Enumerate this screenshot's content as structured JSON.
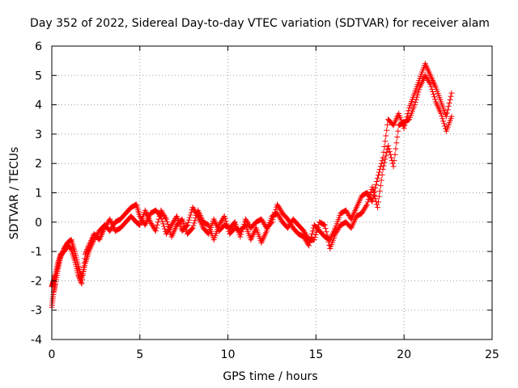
{
  "chart_data": {
    "type": "scatter",
    "title": "Day 352 of 2022, Sidereal Day-to-day VTEC variation (SDTVAR) for receiver alam",
    "xlabel": "GPS time / hours",
    "ylabel": "SDTVAR / TECUs",
    "xlim": [
      0,
      25
    ],
    "ylim": [
      -4,
      6
    ],
    "xticks": [
      0,
      5,
      10,
      15,
      20,
      25
    ],
    "yticks": [
      -4,
      -3,
      -2,
      -1,
      0,
      1,
      2,
      3,
      4,
      5,
      6
    ],
    "xtick_labels": [
      "0",
      "5",
      "10",
      "15",
      "20",
      "25"
    ],
    "ytick_labels": [
      "-4",
      "-3",
      "-2",
      "-1",
      "0",
      "1",
      "2",
      "3",
      "4",
      "5",
      "6"
    ],
    "grid": true,
    "marker": "+",
    "series": [
      {
        "name": "SDTVAR",
        "color": "#ff0000",
        "x": [
          0.0,
          0.1,
          0.2,
          0.35,
          0.5,
          0.7,
          0.9,
          1.1,
          1.3,
          1.5,
          1.7,
          1.9,
          2.1,
          2.4,
          2.7,
          3.0,
          3.3,
          3.6,
          3.9,
          4.2,
          4.5,
          4.8,
          5.0,
          5.3,
          5.6,
          5.9,
          6.2,
          6.5,
          6.8,
          7.1,
          7.4,
          7.7,
          8.0,
          8.3,
          8.6,
          8.9,
          9.2,
          9.5,
          9.8,
          10.1,
          10.4,
          10.7,
          11.0,
          11.3,
          11.6,
          11.9,
          12.2,
          12.5,
          12.8,
          13.1,
          13.4,
          13.7,
          14.0,
          14.3,
          14.6,
          14.9,
          15.2,
          15.5,
          15.8,
          16.1,
          16.4,
          16.7,
          17.0,
          17.3,
          17.6,
          17.9,
          18.2,
          18.5,
          18.8,
          19.1,
          19.4,
          19.7,
          20.0,
          20.3,
          20.6,
          20.9,
          21.2,
          21.5,
          21.8,
          22.1,
          22.4,
          22.7
        ],
        "y": [
          -2.9,
          -2.4,
          -2.1,
          -1.6,
          -1.2,
          -0.9,
          -0.7,
          -0.6,
          -1.0,
          -1.5,
          -1.9,
          -1.4,
          -1.0,
          -0.6,
          -0.3,
          -0.1,
          -0.3,
          0.0,
          0.1,
          0.3,
          0.5,
          0.6,
          0.2,
          -0.1,
          0.3,
          0.4,
          0.2,
          -0.4,
          -0.1,
          0.2,
          -0.3,
          -0.1,
          0.5,
          0.2,
          -0.2,
          -0.4,
          0.1,
          -0.3,
          -0.1,
          -0.2,
          0.0,
          -0.5,
          0.1,
          -0.2,
          0.0,
          0.1,
          -0.2,
          0.0,
          0.6,
          0.3,
          0.1,
          -0.2,
          -0.4,
          -0.5,
          -0.8,
          -0.1,
          -0.3,
          -0.5,
          -0.6,
          -0.2,
          0.3,
          0.4,
          0.1,
          0.5,
          0.9,
          1.0,
          0.7,
          1.5,
          2.2,
          3.5,
          3.3,
          3.7,
          3.2,
          3.9,
          4.4,
          4.9,
          5.4,
          5.0,
          4.6,
          4.1,
          3.6,
          4.4
        ],
        "y2": [
          -2.2,
          -2.0,
          -1.8,
          -1.4,
          -1.1,
          -1.0,
          -0.8,
          -0.9,
          -1.3,
          -1.8,
          -2.1,
          -1.1,
          -0.8,
          -0.4,
          -0.6,
          -0.2,
          0.1,
          -0.3,
          -0.2,
          0.0,
          0.2,
          0.0,
          -0.1,
          0.4,
          0.0,
          -0.3,
          0.4,
          0.1,
          -0.5,
          -0.1,
          0.1,
          -0.4,
          -0.2,
          0.4,
          0.0,
          -0.1,
          -0.6,
          -0.1,
          0.2,
          -0.4,
          -0.2,
          -0.3,
          -0.1,
          -0.6,
          -0.2,
          -0.7,
          -0.3,
          0.2,
          0.3,
          0.0,
          -0.2,
          0.1,
          -0.1,
          -0.3,
          -0.6,
          -0.6,
          0.0,
          -0.1,
          -0.9,
          -0.4,
          -0.1,
          0.0,
          -0.2,
          0.2,
          0.3,
          0.6,
          1.2,
          0.5,
          1.8,
          2.6,
          1.9,
          3.3,
          3.4,
          3.5,
          4.0,
          4.6,
          5.0,
          4.7,
          4.1,
          3.7,
          3.1,
          3.6
        ]
      }
    ]
  }
}
